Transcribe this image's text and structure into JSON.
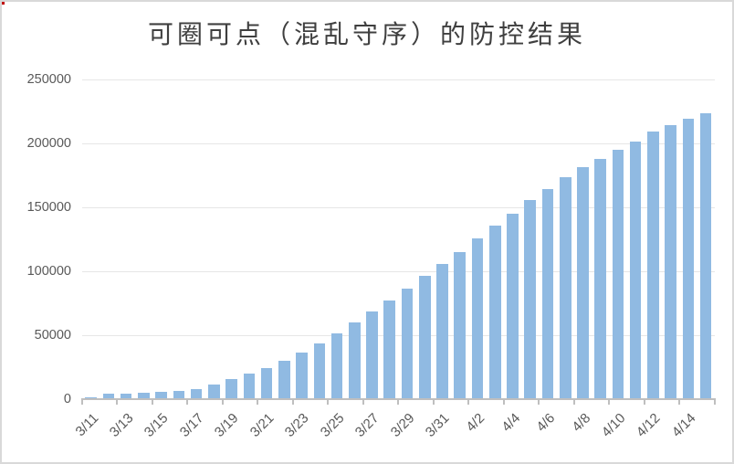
{
  "window": {
    "corner_mark_color": "#C00000"
  },
  "chart_data": {
    "type": "bar",
    "title": "可圈可点（混乱守序）的防控结果",
    "categories": [
      "3/11",
      "3/12",
      "3/13",
      "3/14",
      "3/15",
      "3/16",
      "3/17",
      "3/18",
      "3/19",
      "3/20",
      "3/21",
      "3/22",
      "3/23",
      "3/24",
      "3/25",
      "3/26",
      "3/27",
      "3/28",
      "3/29",
      "3/30",
      "3/31",
      "4/1",
      "4/2",
      "4/3",
      "4/4",
      "4/5",
      "4/6",
      "4/7",
      "4/8",
      "4/9",
      "4/10",
      "4/11",
      "4/12",
      "4/13",
      "4/14",
      "4/15"
    ],
    "values": [
      1000,
      4000,
      4500,
      5000,
      5300,
      6000,
      7400,
      11200,
      15500,
      20000,
      24300,
      29800,
      36200,
      43300,
      51600,
      60000,
      68600,
      77100,
      86400,
      96200,
      105500,
      115200,
      125500,
      135700,
      144800,
      155700,
      164300,
      173100,
      181400,
      188000,
      195200,
      201600,
      208800,
      214500,
      219000,
      223300
    ],
    "x_tick_labels": [
      "3/11",
      "3/13",
      "3/15",
      "3/17",
      "3/19",
      "3/21",
      "3/23",
      "3/25",
      "3/27",
      "3/29",
      "3/31",
      "4/2",
      "4/4",
      "4/6",
      "4/8",
      "4/10",
      "4/12",
      "4/14"
    ],
    "y_ticks": [
      0,
      50000,
      100000,
      150000,
      200000,
      250000
    ],
    "ylim": [
      0,
      250000
    ],
    "xlabel": "",
    "ylabel": "",
    "grid": true,
    "legend": "none",
    "bar_color": "#90BAE2",
    "gridline_color": "#E6E6E6",
    "axis_color": "#BFBFBF",
    "label_color": "#595959",
    "title_color": "#3F3F3F"
  }
}
